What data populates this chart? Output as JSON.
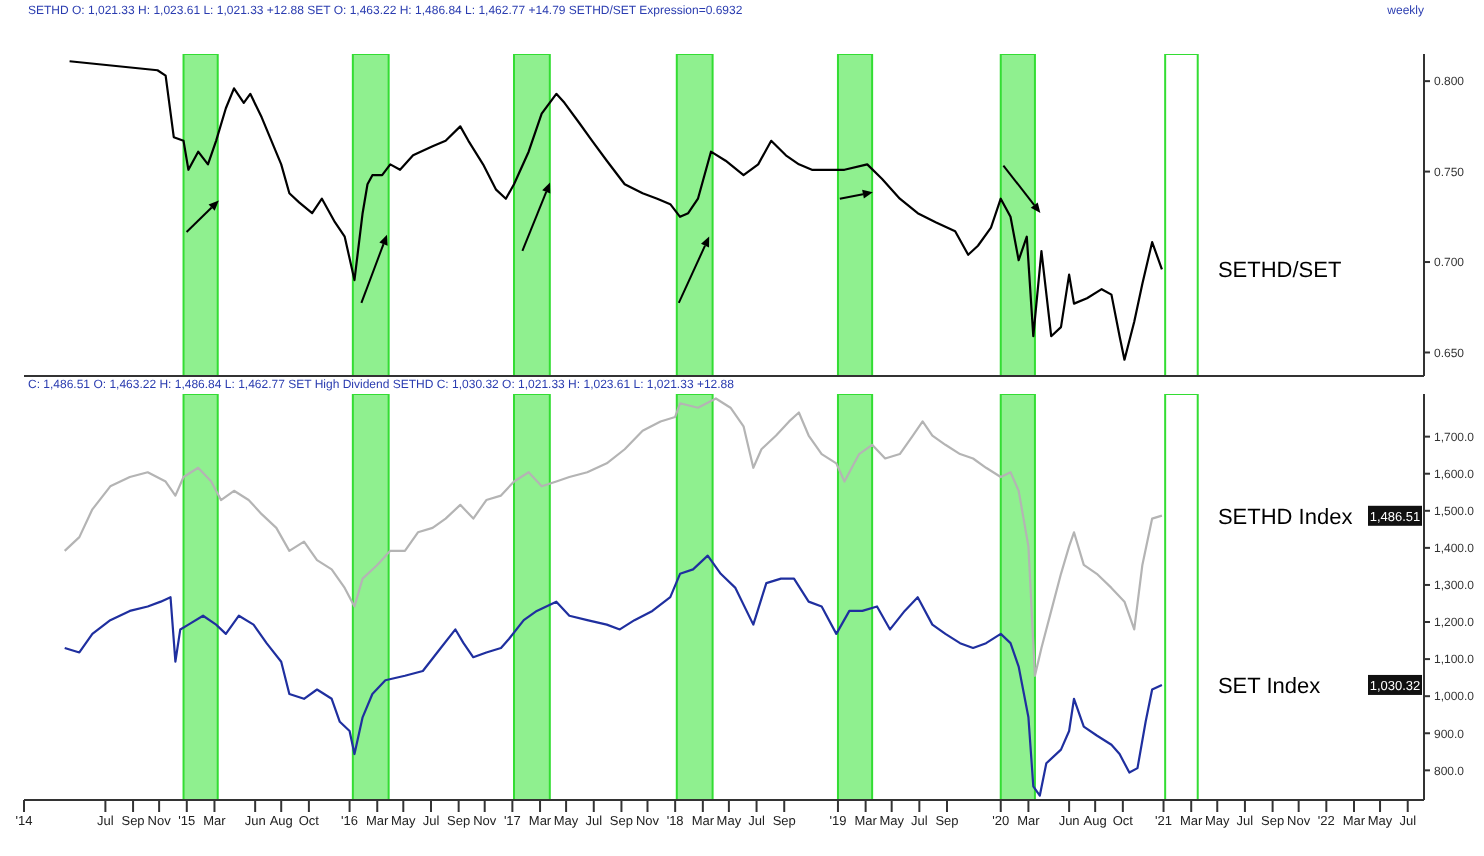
{
  "chart_data": [
    {
      "type": "line",
      "annotations": [
        "SETHD O: 1,021.33 H: 1,023.61 L: 1,021.33 +12.88 SET O: 1,463.22 H: 1,486.84 L: 1,462.77 +14.79 SETHD/SET Expression=0.6932",
        "weekly"
      ],
      "series": [
        {
          "name": "SETHD/SET",
          "color": "#000000",
          "x": [
            2014.28,
            2014.82,
            2014.87,
            2014.92,
            2014.98,
            2015.01,
            2015.07,
            2015.13,
            2015.18,
            2015.24,
            2015.29,
            2015.35,
            2015.39,
            2015.46,
            2015.52,
            2015.58,
            2015.63,
            2015.69,
            2015.77,
            2015.83,
            2015.91,
            2015.97,
            2016.03,
            2016.08,
            2016.11,
            2016.14,
            2016.2,
            2016.25,
            2016.31,
            2016.39,
            2016.51,
            2016.59,
            2016.68,
            2016.73,
            2016.82,
            2016.9,
            2016.96,
            2017.01,
            2017.1,
            2017.18,
            2017.27,
            2017.32,
            2017.41,
            2017.49,
            2017.58,
            2017.69,
            2017.8,
            2017.89,
            2017.97,
            2018.03,
            2018.08,
            2018.14,
            2018.22,
            2018.31,
            2018.42,
            2018.51,
            2018.59,
            2018.68,
            2018.76,
            2018.84,
            2018.93,
            2019.04,
            2019.18,
            2019.27,
            2019.38,
            2019.49,
            2019.6,
            2019.72,
            2019.8,
            2019.86,
            2019.94,
            2020.0,
            2020.06,
            2020.11,
            2020.16,
            2020.2,
            2020.25,
            2020.31,
            2020.37,
            2020.42,
            2020.45,
            2020.53,
            2020.62,
            2020.68,
            2020.73,
            2020.76,
            2020.82,
            2020.87,
            2020.93,
            2020.99
          ],
          "values": [
            0.811,
            0.806,
            0.803,
            0.769,
            0.767,
            0.751,
            0.761,
            0.754,
            0.767,
            0.785,
            0.796,
            0.788,
            0.793,
            0.78,
            0.767,
            0.754,
            0.738,
            0.733,
            0.727,
            0.735,
            0.722,
            0.714,
            0.69,
            0.727,
            0.743,
            0.748,
            0.748,
            0.754,
            0.751,
            0.759,
            0.764,
            0.767,
            0.775,
            0.767,
            0.754,
            0.74,
            0.735,
            0.743,
            0.761,
            0.782,
            0.793,
            0.788,
            0.777,
            0.767,
            0.756,
            0.743,
            0.738,
            0.735,
            0.732,
            0.725,
            0.727,
            0.735,
            0.761,
            0.756,
            0.748,
            0.754,
            0.767,
            0.759,
            0.754,
            0.751,
            0.751,
            0.751,
            0.754,
            0.746,
            0.735,
            0.727,
            0.722,
            0.717,
            0.704,
            0.709,
            0.719,
            0.735,
            0.725,
            0.701,
            0.714,
            0.659,
            0.706,
            0.659,
            0.664,
            0.693,
            0.677,
            0.68,
            0.685,
            0.682,
            0.659,
            0.646,
            0.667,
            0.688,
            0.711,
            0.696
          ]
        }
      ],
      "xlim": [
        2014.0,
        2022.6
      ],
      "ylim": [
        0.637,
        0.815
      ],
      "yticks": [
        {
          "value": 0.65,
          "label": "0.650"
        },
        {
          "value": 0.7,
          "label": "0.700"
        },
        {
          "value": 0.75,
          "label": "0.750"
        },
        {
          "value": 0.8,
          "label": "0.800"
        }
      ],
      "tick_labels": "y",
      "bands": [
        {
          "axis": "x",
          "from": 2014.98,
          "to": 2015.19,
          "color": "#8ff08f"
        },
        {
          "axis": "x",
          "from": 2016.02,
          "to": 2016.24,
          "color": "#8ff08f"
        },
        {
          "axis": "x",
          "from": 2017.01,
          "to": 2017.23,
          "color": "#8ff08f"
        },
        {
          "axis": "x",
          "from": 2018.01,
          "to": 2018.23,
          "color": "#8ff08f"
        },
        {
          "axis": "x",
          "from": 2019.0,
          "to": 2019.21,
          "color": "#8ff08f"
        },
        {
          "axis": "x",
          "from": 2020.0,
          "to": 2020.21,
          "color": "#8ff08f"
        },
        {
          "axis": "x",
          "from": 2021.01,
          "to": 2021.21,
          "color": "#ffffff"
        }
      ]
    },
    {
      "type": "line",
      "annotations": [
        "C: 1,486.51 O: 1,463.22 H: 1,486.84 L: 1,462.77 SET High Dividend SETHD C: 1,030.32 O: 1,021.33 H: 1,023.61 L: 1,021.33 +12.88",
        {
          "text": "1,486.51",
          "y": 1486.51
        },
        {
          "text": "1,030.32",
          "y": 1030.32
        }
      ],
      "series": [
        {
          "name": "SETHD Index",
          "color": "#b4b4b4",
          "x": [
            2014.25,
            2014.34,
            2014.42,
            2014.53,
            2014.65,
            2014.76,
            2014.87,
            2014.93,
            2014.98,
            2015.07,
            2015.15,
            2015.21,
            2015.29,
            2015.38,
            2015.46,
            2015.55,
            2015.63,
            2015.72,
            2015.8,
            2015.89,
            2015.97,
            2016.03,
            2016.08,
            2016.17,
            2016.25,
            2016.34,
            2016.42,
            2016.51,
            2016.59,
            2016.68,
            2016.76,
            2016.84,
            2016.93,
            2017.01,
            2017.1,
            2017.18,
            2017.27,
            2017.35,
            2017.46,
            2017.58,
            2017.69,
            2017.8,
            2017.91,
            2018.0,
            2018.03,
            2018.14,
            2018.25,
            2018.34,
            2018.42,
            2018.48,
            2018.53,
            2018.62,
            2018.7,
            2018.76,
            2018.82,
            2018.9,
            2018.99,
            2019.04,
            2019.13,
            2019.21,
            2019.29,
            2019.38,
            2019.46,
            2019.52,
            2019.58,
            2019.66,
            2019.75,
            2019.83,
            2019.91,
            2020.0,
            2020.06,
            2020.11,
            2020.17,
            2020.21,
            2020.25,
            2020.31,
            2020.37,
            2020.42,
            2020.45,
            2020.51,
            2020.59,
            2020.68,
            2020.76,
            2020.82,
            2020.87,
            2020.93,
            2020.99
          ],
          "values": [
            1392,
            1429,
            1504,
            1566,
            1591,
            1604,
            1579,
            1541,
            1591,
            1616,
            1579,
            1529,
            1554,
            1529,
            1491,
            1454,
            1392,
            1417,
            1367,
            1342,
            1292,
            1242,
            1317,
            1354,
            1392,
            1392,
            1442,
            1454,
            1479,
            1516,
            1479,
            1529,
            1541,
            1579,
            1604,
            1566,
            1579,
            1591,
            1604,
            1628,
            1666,
            1716,
            1741,
            1753,
            1790,
            1778,
            1803,
            1778,
            1728,
            1616,
            1666,
            1703,
            1741,
            1765,
            1703,
            1653,
            1628,
            1579,
            1653,
            1678,
            1641,
            1653,
            1703,
            1741,
            1703,
            1678,
            1653,
            1641,
            1616,
            1591,
            1604,
            1554,
            1404,
            1055,
            1130,
            1230,
            1330,
            1404,
            1442,
            1354,
            1330,
            1292,
            1255,
            1180,
            1354,
            1479,
            1487
          ]
        },
        {
          "name": "SET Index",
          "color": "#1f2f9f",
          "x": [
            2014.25,
            2014.34,
            2014.42,
            2014.53,
            2014.65,
            2014.76,
            2014.84,
            2014.9,
            2014.93,
            2014.96,
            2015.01,
            2015.1,
            2015.18,
            2015.24,
            2015.32,
            2015.41,
            2015.49,
            2015.58,
            2015.63,
            2015.72,
            2015.8,
            2015.89,
            2015.94,
            2016.0,
            2016.03,
            2016.08,
            2016.14,
            2016.22,
            2016.34,
            2016.45,
            2016.56,
            2016.65,
            2016.7,
            2016.76,
            2016.84,
            2016.93,
            2016.98,
            2017.07,
            2017.15,
            2017.27,
            2017.35,
            2017.46,
            2017.58,
            2017.66,
            2017.75,
            2017.86,
            2017.97,
            2018.03,
            2018.11,
            2018.2,
            2018.28,
            2018.37,
            2018.48,
            2018.56,
            2018.65,
            2018.73,
            2018.82,
            2018.9,
            2018.99,
            2019.07,
            2019.15,
            2019.24,
            2019.32,
            2019.41,
            2019.49,
            2019.58,
            2019.66,
            2019.75,
            2019.83,
            2019.91,
            2020.0,
            2020.06,
            2020.11,
            2020.17,
            2020.2,
            2020.24,
            2020.28,
            2020.37,
            2020.42,
            2020.45,
            2020.51,
            2020.59,
            2020.68,
            2020.73,
            2020.79,
            2020.84,
            2020.89,
            2020.93,
            2020.99
          ],
          "values": [
            1130,
            1118,
            1168,
            1205,
            1230,
            1242,
            1255,
            1267,
            1093,
            1180,
            1193,
            1217,
            1193,
            1168,
            1217,
            1193,
            1143,
            1093,
            1006,
            993,
            1018,
            993,
            931,
            906,
            844,
            943,
            1006,
            1043,
            1055,
            1068,
            1130,
            1180,
            1143,
            1105,
            1118,
            1130,
            1155,
            1205,
            1230,
            1255,
            1217,
            1205,
            1193,
            1180,
            1205,
            1230,
            1267,
            1330,
            1342,
            1379,
            1330,
            1292,
            1193,
            1305,
            1317,
            1317,
            1255,
            1242,
            1168,
            1230,
            1230,
            1242,
            1180,
            1230,
            1267,
            1193,
            1168,
            1143,
            1130,
            1143,
            1168,
            1143,
            1080,
            943,
            757,
            732,
            819,
            856,
            906,
            993,
            918,
            894,
            869,
            844,
            794,
            806,
            931,
            1018,
            1030
          ]
        }
      ],
      "xlim": [
        2014.0,
        2022.6
      ],
      "ylim": [
        720,
        1815
      ],
      "xticks": [
        {
          "value": 2014,
          "label": "'14"
        },
        {
          "value": 2014.5,
          "label": "Jul"
        },
        {
          "value": 2014.67,
          "label": "Sep"
        },
        {
          "value": 2014.83,
          "label": "Nov"
        },
        {
          "value": 2015,
          "label": "'15"
        },
        {
          "value": 2015.17,
          "label": "Mar"
        },
        {
          "value": 2015.42,
          "label": "Jun"
        },
        {
          "value": 2015.58,
          "label": "Aug"
        },
        {
          "value": 2015.75,
          "label": "Oct"
        },
        {
          "value": 2016,
          "label": "'16"
        },
        {
          "value": 2016.17,
          "label": "Mar"
        },
        {
          "value": 2016.33,
          "label": "May"
        },
        {
          "value": 2016.5,
          "label": "Jul"
        },
        {
          "value": 2016.67,
          "label": "Sep"
        },
        {
          "value": 2016.83,
          "label": "Nov"
        },
        {
          "value": 2017,
          "label": "'17"
        },
        {
          "value": 2017.17,
          "label": "Mar"
        },
        {
          "value": 2017.33,
          "label": "May"
        },
        {
          "value": 2017.5,
          "label": "Jul"
        },
        {
          "value": 2017.67,
          "label": "Sep"
        },
        {
          "value": 2017.83,
          "label": "Nov"
        },
        {
          "value": 2018,
          "label": "'18"
        },
        {
          "value": 2018.17,
          "label": "Mar"
        },
        {
          "value": 2018.33,
          "label": "May"
        },
        {
          "value": 2018.5,
          "label": "Jul"
        },
        {
          "value": 2018.67,
          "label": "Sep"
        },
        {
          "value": 2019,
          "label": "'19"
        },
        {
          "value": 2019.17,
          "label": "Mar"
        },
        {
          "value": 2019.33,
          "label": "May"
        },
        {
          "value": 2019.5,
          "label": "Jul"
        },
        {
          "value": 2019.67,
          "label": "Sep"
        },
        {
          "value": 2020,
          "label": "'20"
        },
        {
          "value": 2020.17,
          "label": "Mar"
        },
        {
          "value": 2020.42,
          "label": "Jun"
        },
        {
          "value": 2020.58,
          "label": "Aug"
        },
        {
          "value": 2020.75,
          "label": "Oct"
        },
        {
          "value": 2021,
          "label": "'21"
        },
        {
          "value": 2021.17,
          "label": "Mar"
        },
        {
          "value": 2021.33,
          "label": "May"
        },
        {
          "value": 2021.5,
          "label": "Jul"
        },
        {
          "value": 2021.67,
          "label": "Sep"
        },
        {
          "value": 2021.83,
          "label": "Nov"
        },
        {
          "value": 2022,
          "label": "'22"
        },
        {
          "value": 2022.17,
          "label": "Mar"
        },
        {
          "value": 2022.33,
          "label": "May"
        },
        {
          "value": 2022.5,
          "label": "Jul"
        }
      ],
      "yticks": [
        {
          "value": 800,
          "label": "800.0"
        },
        {
          "value": 900,
          "label": "900.0"
        },
        {
          "value": 1000,
          "label": "1,000.0"
        },
        {
          "value": 1100,
          "label": "1,100.0"
        },
        {
          "value": 1200,
          "label": "1,200.0"
        },
        {
          "value": 1300,
          "label": "1,300.0"
        },
        {
          "value": 1400,
          "label": "1,400.0"
        },
        {
          "value": 1500,
          "label": "1,500.0"
        },
        {
          "value": 1600,
          "label": "1,600.0"
        },
        {
          "value": 1700,
          "label": "1,700.0"
        }
      ],
      "bands": [
        {
          "axis": "x",
          "from": 2014.98,
          "to": 2015.19,
          "color": "#8ff08f"
        },
        {
          "axis": "x",
          "from": 2016.02,
          "to": 2016.24,
          "color": "#8ff08f"
        },
        {
          "axis": "x",
          "from": 2017.01,
          "to": 2017.23,
          "color": "#8ff08f"
        },
        {
          "axis": "x",
          "from": 2018.01,
          "to": 2018.23,
          "color": "#8ff08f"
        },
        {
          "axis": "x",
          "from": 2019.0,
          "to": 2019.21,
          "color": "#8ff08f"
        },
        {
          "axis": "x",
          "from": 2020.0,
          "to": 2020.21,
          "color": "#8ff08f"
        },
        {
          "axis": "x",
          "from": 2021.01,
          "to": 2021.21,
          "color": "#ffffff"
        }
      ]
    }
  ]
}
